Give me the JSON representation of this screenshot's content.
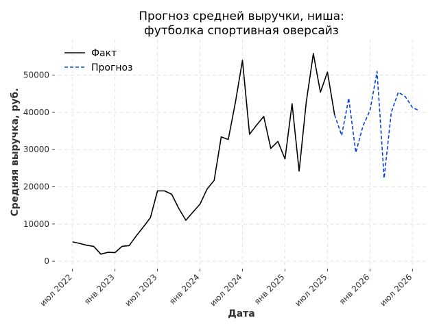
{
  "chart_data": {
    "type": "line",
    "title": [
      "Прогноз средней выручки, ниша:",
      "футболка спортивная оверсайз"
    ],
    "xlabel": "Дата",
    "ylabel": "Средняя выручка, руб.",
    "x_ticks": [
      {
        "date": "2022-07",
        "label": "июл 2022"
      },
      {
        "date": "2023-01",
        "label": "янв 2023"
      },
      {
        "date": "2023-07",
        "label": "июл 2023"
      },
      {
        "date": "2024-01",
        "label": "янв 2024"
      },
      {
        "date": "2024-07",
        "label": "июл 2024"
      },
      {
        "date": "2025-01",
        "label": "янв 2025"
      },
      {
        "date": "2025-07",
        "label": "июл 2025"
      },
      {
        "date": "2026-01",
        "label": "янв 2026"
      },
      {
        "date": "2026-07",
        "label": "июл 2026"
      }
    ],
    "y_ticks": [
      0,
      10000,
      20000,
      30000,
      40000,
      50000
    ],
    "ylim": [
      -2000,
      59500
    ],
    "xlim": [
      "2022-05",
      "2026-09"
    ],
    "grid": true,
    "legend_position": "top-left",
    "series": [
      {
        "name": "Факт",
        "color": "#000000",
        "style": "solid",
        "points": [
          [
            "2022-07",
            5200
          ],
          [
            "2022-08",
            4800
          ],
          [
            "2022-09",
            4300
          ],
          [
            "2022-10",
            4000
          ],
          [
            "2022-11",
            1900
          ],
          [
            "2022-12",
            2400
          ],
          [
            "2023-01",
            2300
          ],
          [
            "2023-02",
            4000
          ],
          [
            "2023-03",
            4200
          ],
          [
            "2023-04",
            6800
          ],
          [
            "2023-05",
            9200
          ],
          [
            "2023-06",
            11700
          ],
          [
            "2023-07",
            18900
          ],
          [
            "2023-08",
            18900
          ],
          [
            "2023-09",
            18000
          ],
          [
            "2023-10",
            14200
          ],
          [
            "2023-11",
            11000
          ],
          [
            "2023-12",
            13200
          ],
          [
            "2024-01",
            15300
          ],
          [
            "2024-02",
            19400
          ],
          [
            "2024-03",
            21700
          ],
          [
            "2024-04",
            33400
          ],
          [
            "2024-05",
            32700
          ],
          [
            "2024-06",
            42700
          ],
          [
            "2024-07",
            54000
          ],
          [
            "2024-08",
            34100
          ],
          [
            "2024-09",
            36600
          ],
          [
            "2024-10",
            38900
          ],
          [
            "2024-11",
            30300
          ],
          [
            "2024-12",
            32200
          ],
          [
            "2025-01",
            27500
          ],
          [
            "2025-02",
            42300
          ],
          [
            "2025-03",
            24200
          ],
          [
            "2025-04",
            42600
          ],
          [
            "2025-05",
            55800
          ],
          [
            "2025-06",
            45400
          ],
          [
            "2025-07",
            50800
          ],
          [
            "2025-08",
            39300
          ]
        ]
      },
      {
        "name": "Прогноз",
        "color": "#0044e0",
        "style": "dashed",
        "points": [
          [
            "2025-08",
            39300
          ],
          [
            "2025-09",
            33800
          ],
          [
            "2025-10",
            43800
          ],
          [
            "2025-11",
            29200
          ],
          [
            "2025-12",
            36300
          ],
          [
            "2026-01",
            40500
          ],
          [
            "2026-02",
            51000
          ],
          [
            "2026-03",
            22300
          ],
          [
            "2026-04",
            40000
          ],
          [
            "2026-05",
            45400
          ],
          [
            "2026-06",
            44200
          ],
          [
            "2026-07",
            41300
          ],
          [
            "2026-08",
            40400
          ]
        ]
      }
    ]
  }
}
